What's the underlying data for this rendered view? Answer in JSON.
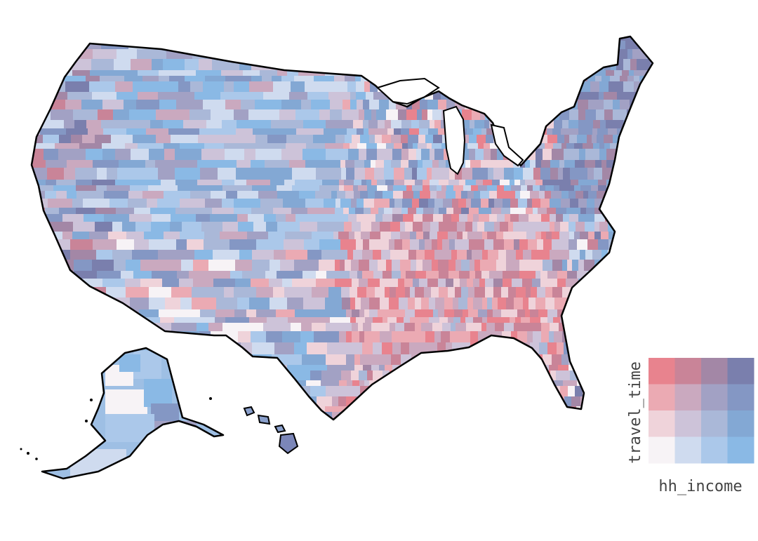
{
  "legend": {
    "x_label": "hh_income",
    "y_label": "travel_time",
    "grid_rows_top_to_bottom": [
      [
        "#e8838e",
        "#c98498",
        "#a387a6",
        "#7a7fad"
      ],
      [
        "#ebaab3",
        "#caa9bf",
        "#a2a1c4",
        "#8497c4"
      ],
      [
        "#efd3da",
        "#cdc3d9",
        "#aab8d8",
        "#83a8d4"
      ],
      [
        "#f7f3f6",
        "#cfdbef",
        "#abc8ea",
        "#8ab9e5"
      ]
    ]
  },
  "palette": {
    "outline": "#000000",
    "background": "#ffffff"
  }
}
